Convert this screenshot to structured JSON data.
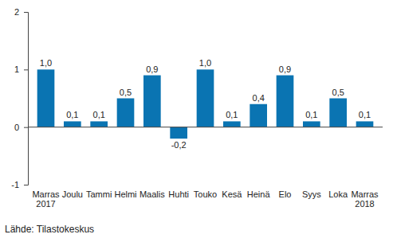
{
  "chart_data": {
    "type": "bar",
    "categories": [
      "Marras 2017",
      "Joulu",
      "Tammi",
      "Helmi",
      "Maalis",
      "Huhti",
      "Touko",
      "Kesä",
      "Heinä",
      "Elo",
      "Syys",
      "Loka",
      "Marras 2018"
    ],
    "values": [
      1.0,
      0.1,
      0.1,
      0.5,
      0.9,
      -0.2,
      1.0,
      0.1,
      0.4,
      0.9,
      0.1,
      0.5,
      0.1
    ],
    "value_labels": [
      "1,0",
      "0,1",
      "0,1",
      "0,5",
      "0,9",
      "-0,2",
      "1,0",
      "0,1",
      "0,4",
      "0,9",
      "0,1",
      "0,5",
      "0,1"
    ],
    "data_labels": true,
    "color": "#0a74b2",
    "ylim": [
      -1,
      2
    ],
    "yticks": [
      -1,
      0,
      1,
      2
    ],
    "grid": false,
    "source": "Lähde: Tilastokeskus"
  }
}
